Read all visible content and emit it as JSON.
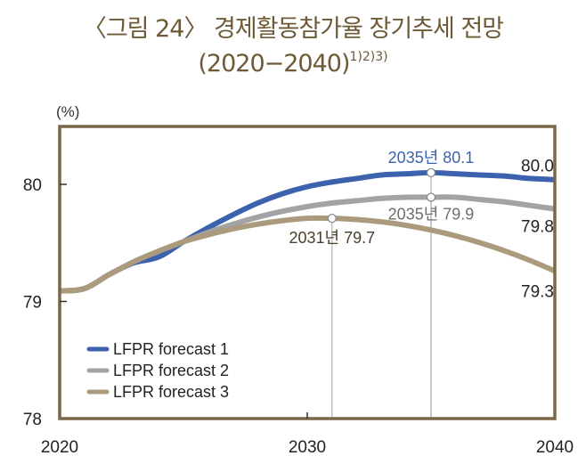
{
  "title": {
    "line1": "〈그림 24〉 경제활동참가율 장기추세 전망",
    "line2": "(2020−2040)",
    "footnote_marks": "1)2)3)"
  },
  "colors": {
    "title": "#6e5a37",
    "frame": "#7a6748",
    "forecast1": "#3d62ad",
    "forecast2": "#a3a3a3",
    "forecast3": "#ab9b7c",
    "guide": "#b0b0b0"
  },
  "chart_data": {
    "type": "line",
    "title": "〈그림 24〉 경제활동참가율 장기추세 전망 (2020−2040)",
    "xlabel": "",
    "ylabel": "(%)",
    "xlim": [
      2020,
      2040
    ],
    "ylim": [
      78,
      80.5
    ],
    "x_ticks": [
      2020,
      2030,
      2040
    ],
    "x_tick_labels": [
      "2020",
      "2030",
      "2040"
    ],
    "y_ticks": [
      78,
      79,
      80
    ],
    "y_tick_labels": [
      "78",
      "79",
      "80"
    ],
    "grid": false,
    "legend_position": "bottom-left",
    "x": [
      2020,
      2021,
      2022,
      2023,
      2024,
      2025,
      2026,
      2027,
      2028,
      2029,
      2030,
      2031,
      2032,
      2033,
      2034,
      2035,
      2036,
      2037,
      2038,
      2039,
      2040
    ],
    "series": [
      {
        "name": "LFPR forecast 1",
        "values": [
          79.09,
          79.11,
          79.23,
          79.33,
          79.38,
          79.51,
          79.63,
          79.74,
          79.84,
          79.92,
          79.98,
          80.02,
          80.05,
          80.08,
          80.09,
          80.1,
          80.09,
          80.08,
          80.07,
          80.05,
          80.04
        ]
      },
      {
        "name": "LFPR forecast 2",
        "values": [
          79.09,
          79.11,
          79.23,
          79.34,
          79.43,
          79.51,
          79.59,
          79.66,
          79.72,
          79.77,
          79.81,
          79.84,
          79.86,
          79.88,
          79.89,
          79.89,
          79.89,
          79.87,
          79.85,
          79.82,
          79.79
        ]
      },
      {
        "name": "LFPR forecast 3",
        "values": [
          79.09,
          79.11,
          79.23,
          79.34,
          79.43,
          79.51,
          79.57,
          79.62,
          79.66,
          79.69,
          79.71,
          79.71,
          79.7,
          79.68,
          79.65,
          79.61,
          79.56,
          79.5,
          79.43,
          79.35,
          79.26
        ]
      }
    ],
    "annotations": [
      {
        "series": "LFPR forecast 1",
        "x": 2035,
        "y": 80.1,
        "text": "2035년 80.1",
        "guide_line": true
      },
      {
        "series": "LFPR forecast 2",
        "x": 2035,
        "y": 79.89,
        "text": "2035년 79.9",
        "guide_line": true
      },
      {
        "series": "LFPR forecast 3",
        "x": 2031,
        "y": 79.71,
        "text": "2031년 79.7",
        "guide_line": true
      }
    ],
    "end_labels": [
      {
        "series": "LFPR forecast 1",
        "text": "80.0"
      },
      {
        "series": "LFPR forecast 2",
        "text": "79.8"
      },
      {
        "series": "LFPR forecast 3",
        "text": "79.3"
      }
    ]
  }
}
